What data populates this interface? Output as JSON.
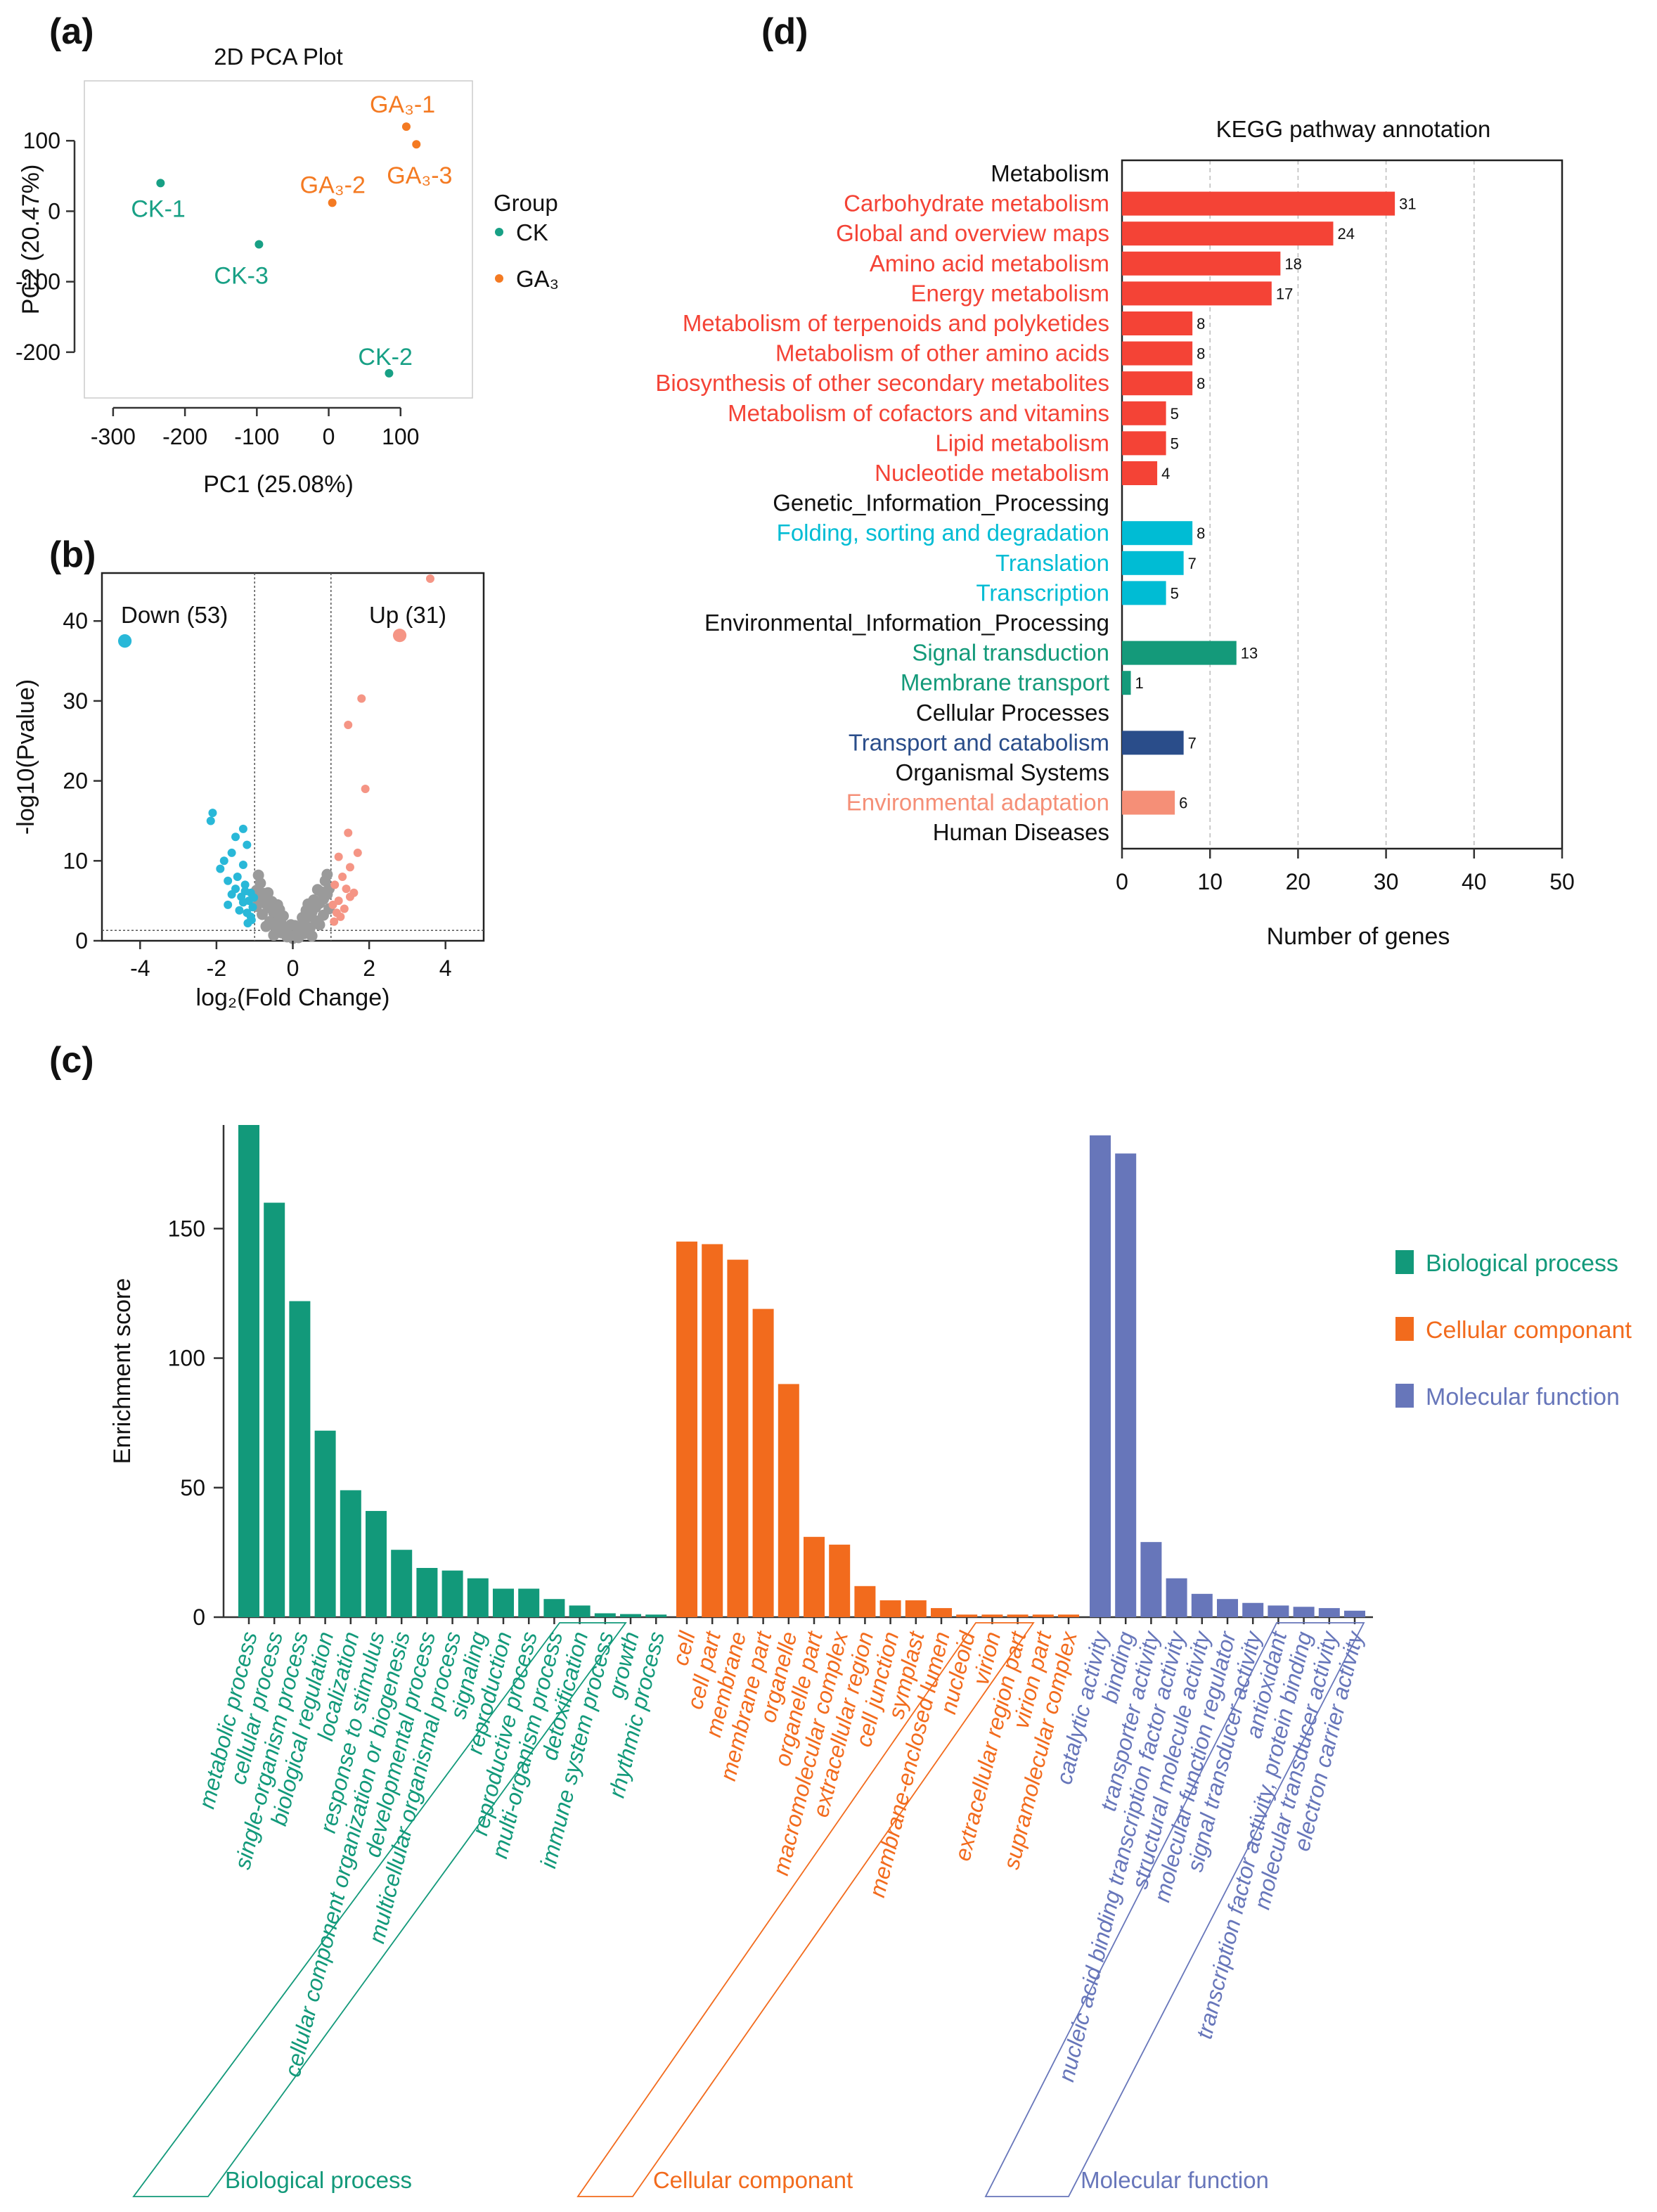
{
  "panels": {
    "a": "(a)",
    "b": "(b)",
    "c": "(c)",
    "d": "(d)"
  },
  "colors": {
    "ck": "#18a085",
    "ga": "#f47a22",
    "gray": "#9a9a9a",
    "blue_down": "#29b8d8",
    "salmon_up": "#f59585",
    "metabolism": "#f44336",
    "genetic": "#00bcd4",
    "environmental": "#149a7a",
    "cellular": "#2a4d8a",
    "organismal": "#f58f77",
    "bp": "#12997a",
    "cc": "#f26b1d",
    "mf": "#6776ba"
  },
  "chart_data": [
    {
      "id": "pca",
      "type": "scatter",
      "title": "2D PCA Plot",
      "xlabel": "PC1 (25.08%)",
      "ylabel": "PC2 (20.47%)",
      "xlim": [
        -340,
        200
      ],
      "ylim": [
        -265,
        185
      ],
      "xticks": [
        -300,
        -200,
        -100,
        0,
        100
      ],
      "yticks": [
        100,
        0,
        -100,
        -200
      ],
      "xtick_labels": [
        "-300",
        "-200",
        "-100",
        "0",
        "100"
      ],
      "ytick_labels": [
        "100",
        "0",
        "-100",
        "-200"
      ],
      "legend": {
        "title": "Group",
        "position": "right",
        "entries": [
          {
            "name": "CK",
            "color_key": "ck"
          },
          {
            "name": "GA₃",
            "color_key": "ga"
          }
        ]
      },
      "points": [
        {
          "label": "CK-1",
          "group": "CK",
          "x": -234,
          "y": 40
        },
        {
          "label": "CK-3",
          "group": "CK",
          "x": -97,
          "y": -47
        },
        {
          "label": "CK-2",
          "group": "CK",
          "x": 84,
          "y": -230
        },
        {
          "label": "GA₃-2",
          "group": "GA₃",
          "x": 5,
          "y": 12
        },
        {
          "label": "GA₃-1",
          "group": "GA₃",
          "x": 108,
          "y": 120
        },
        {
          "label": "GA₃-3",
          "group": "GA₃",
          "x": 122,
          "y": 95
        }
      ]
    },
    {
      "id": "volcano",
      "type": "scatter",
      "xlabel": "log₂(Fold Change)",
      "ylabel": "-log10(Pvalue)",
      "xlim": [
        -5,
        5
      ],
      "ylim": [
        0,
        46
      ],
      "xticks": [
        -4,
        -2,
        0,
        2,
        4
      ],
      "yticks": [
        0,
        10,
        20,
        30,
        40
      ],
      "xtick_labels": [
        "-4",
        "-2",
        "0",
        "2",
        "4"
      ],
      "ytick_labels": [
        "0",
        "10",
        "20",
        "30",
        "40"
      ],
      "thresholds": {
        "fc": [
          -1,
          1
        ],
        "p": 1.3
      },
      "annotations": {
        "down": "Down (53)",
        "up": "Up (31)"
      },
      "points_down": [
        [
          -4.4,
          37.5,
          1.6
        ],
        [
          -2.1,
          16,
          1
        ],
        [
          -2.15,
          15,
          1
        ],
        [
          -1.3,
          14,
          1
        ],
        [
          -1.5,
          13,
          1
        ],
        [
          -1.2,
          12,
          1
        ],
        [
          -1.6,
          11,
          1
        ],
        [
          -1.8,
          10,
          1
        ],
        [
          -1.3,
          9.5,
          1
        ],
        [
          -1.45,
          8,
          1
        ],
        [
          -1.7,
          7.5,
          1
        ],
        [
          -1.9,
          9,
          1
        ],
        [
          -1.25,
          7,
          1
        ],
        [
          -1.1,
          6,
          1
        ],
        [
          -1.35,
          5.5,
          1
        ],
        [
          -1.15,
          5,
          1
        ],
        [
          -1.5,
          6.5,
          1
        ],
        [
          -1.05,
          4.2,
          1
        ],
        [
          -1.2,
          3.5,
          1
        ],
        [
          -1.1,
          3,
          1
        ],
        [
          -1.3,
          4.8,
          1
        ],
        [
          -1.6,
          5.8,
          1
        ],
        [
          -1.08,
          2.6,
          1
        ],
        [
          -1.4,
          3.8,
          1
        ],
        [
          -1.18,
          2.2,
          1
        ],
        [
          -1.02,
          5.4,
          1
        ],
        [
          -1.25,
          6.2,
          1
        ],
        [
          -1.7,
          4.5,
          1
        ]
      ],
      "points_up": [
        [
          2.8,
          38.2,
          1.6
        ],
        [
          3.6,
          45.3,
          1
        ],
        [
          1.8,
          30.3,
          1
        ],
        [
          1.45,
          27,
          1
        ],
        [
          1.9,
          19,
          1
        ],
        [
          1.45,
          13.5,
          1
        ],
        [
          1.7,
          11,
          1
        ],
        [
          1.2,
          10.5,
          1
        ],
        [
          1.5,
          9.2,
          1
        ],
        [
          1.3,
          8,
          1
        ],
        [
          1.1,
          7,
          1
        ],
        [
          1.4,
          6.5,
          1
        ],
        [
          1.6,
          6,
          1
        ],
        [
          1.2,
          5,
          1
        ],
        [
          1.05,
          4.5,
          1
        ],
        [
          1.35,
          4,
          1
        ],
        [
          1.15,
          3.5,
          1
        ],
        [
          1.25,
          3,
          1
        ],
        [
          1.08,
          2.4,
          1
        ],
        [
          1.5,
          5.5,
          1
        ]
      ],
      "points_ns": [
        [
          0,
          0.3
        ],
        [
          0.1,
          0.8
        ],
        [
          -0.1,
          0.7
        ],
        [
          0.2,
          1.5
        ],
        [
          -0.2,
          1.4
        ],
        [
          0.3,
          2.2
        ],
        [
          -0.3,
          2.1
        ],
        [
          0.4,
          3
        ],
        [
          -0.4,
          2.8
        ],
        [
          0.5,
          3.6
        ],
        [
          -0.5,
          3.5
        ],
        [
          0.6,
          4.2
        ],
        [
          -0.6,
          4.1
        ],
        [
          0.7,
          4.7
        ],
        [
          -0.7,
          4.6
        ],
        [
          0.8,
          5.2
        ],
        [
          -0.8,
          5
        ],
        [
          0.9,
          5.8
        ],
        [
          -0.9,
          5.6
        ],
        [
          0.95,
          6.5
        ],
        [
          -0.95,
          6.3
        ],
        [
          0.85,
          7.5
        ],
        [
          -0.85,
          7.2
        ],
        [
          0.75,
          6.1
        ],
        [
          -0.75,
          5.9
        ],
        [
          0.6,
          2.5
        ],
        [
          -0.6,
          2.4
        ],
        [
          0.45,
          1.6
        ],
        [
          -0.45,
          1.7
        ],
        [
          0.3,
          0.9
        ],
        [
          -0.3,
          1
        ],
        [
          0.15,
          0.4
        ],
        [
          -0.15,
          0.5
        ],
        [
          0.55,
          5.1
        ],
        [
          -0.55,
          4.9
        ],
        [
          0.35,
          3.8
        ],
        [
          -0.35,
          3.9
        ],
        [
          0.65,
          6.4
        ],
        [
          -0.65,
          6
        ],
        [
          0.25,
          2.9
        ],
        [
          -0.25,
          3.1
        ],
        [
          0.05,
          1.9
        ],
        [
          -0.05,
          2
        ],
        [
          0.9,
          8.3
        ],
        [
          -0.9,
          8.2
        ],
        [
          0.8,
          3.2
        ],
        [
          -0.8,
          3.3
        ],
        [
          0.7,
          2
        ],
        [
          -0.7,
          1.8
        ],
        [
          0.5,
          0.6
        ],
        [
          -0.5,
          0.7
        ],
        [
          0.95,
          4
        ],
        [
          -0.95,
          4.3
        ],
        [
          0.4,
          4.6
        ],
        [
          -0.4,
          4.5
        ]
      ]
    },
    {
      "id": "go",
      "type": "bar",
      "ylabel": "Enrichment score",
      "ylim": [
        0,
        190
      ],
      "yticks": [
        0,
        50,
        100,
        150
      ],
      "ytick_labels": [
        "0",
        "50",
        "100",
        "150"
      ],
      "legend": [
        {
          "name": "Biological process",
          "color_key": "bp"
        },
        {
          "name": "Cellular componant",
          "color_key": "cc"
        },
        {
          "name": "Molecular function",
          "color_key": "mf"
        }
      ],
      "groups": [
        {
          "name": "Biological process",
          "color_key": "bp",
          "categories": [
            "metabolic process",
            "cellular process",
            "single-organism process",
            "biological regulation",
            "localization",
            "response to stimulus",
            "cellular component organization or biogenesis",
            "developmental process",
            "multicellular organismal process",
            "signaling",
            "reproduction",
            "reproductive process",
            "multi-organism process",
            "detoxification",
            "immune system process",
            "growth",
            "rhythmic process"
          ],
          "values": [
            190,
            160,
            122,
            72,
            49,
            41,
            26,
            19,
            18,
            15,
            11,
            11,
            7,
            4.5,
            1.5,
            1.2,
            1
          ]
        },
        {
          "name": "Cellular componant",
          "color_key": "cc",
          "categories": [
            "cell",
            "cell part",
            "membrane",
            "membrane part",
            "organelle",
            "organelle part",
            "macromolecular complex",
            "extracellular region",
            "cell junction",
            "symplast",
            "membrane-enclosed lumen",
            "nucleoid",
            "virion",
            "extracellular region part",
            "virion part",
            "supramolecular complex"
          ],
          "values": [
            145,
            144,
            138,
            119,
            90,
            31,
            28,
            12,
            6.5,
            6.5,
            3.5,
            1,
            1,
            1,
            1,
            1
          ]
        },
        {
          "name": "Molecular function",
          "color_key": "mf",
          "categories": [
            "catalytic activity",
            "binding",
            "transporter activity",
            "nucleic acid binding transcription factor activity",
            "structural molecule activity",
            "molecular function regulator",
            "signal transducer activity",
            "antioxidant",
            "transcription factor activity, protein binding",
            "molecular transducer activity",
            "electron carrier activity"
          ],
          "values": [
            186,
            179,
            29,
            15,
            9,
            7,
            5.5,
            4.5,
            4,
            3.5,
            2.5
          ]
        }
      ]
    },
    {
      "id": "kegg",
      "type": "bar",
      "orientation": "horizontal",
      "title": "KEGG pathway annotation",
      "xlabel": "Number of genes",
      "xlim": [
        0,
        50
      ],
      "xticks": [
        0,
        10,
        20,
        30,
        40,
        50
      ],
      "xtick_labels": [
        "0",
        "10",
        "20",
        "30",
        "40",
        "50"
      ],
      "rows": [
        {
          "label": "Metabolism",
          "header": true
        },
        {
          "label": "Carbohydrate metabolism",
          "value": 31,
          "value_label": "31",
          "color_key": "metabolism"
        },
        {
          "label": "Global and overview maps",
          "value": 24,
          "value_label": "24",
          "color_key": "metabolism"
        },
        {
          "label": "Amino acid metabolism",
          "value": 18,
          "value_label": "18",
          "color_key": "metabolism"
        },
        {
          "label": "Energy metabolism",
          "value": 17,
          "value_label": "17",
          "color_key": "metabolism"
        },
        {
          "label": "Metabolism of terpenoids and polyketides",
          "value": 8,
          "value_label": "8",
          "color_key": "metabolism"
        },
        {
          "label": "Metabolism of other amino acids",
          "value": 8,
          "value_label": "8",
          "color_key": "metabolism"
        },
        {
          "label": "Biosynthesis of other secondary metabolites",
          "value": 8,
          "value_label": "8",
          "color_key": "metabolism"
        },
        {
          "label": "Metabolism of cofactors and vitamins",
          "value": 5,
          "value_label": "5",
          "color_key": "metabolism"
        },
        {
          "label": "Lipid metabolism",
          "value": 5,
          "value_label": "5",
          "color_key": "metabolism"
        },
        {
          "label": "Nucleotide metabolism",
          "value": 4,
          "value_label": "4",
          "color_key": "metabolism"
        },
        {
          "label": "Genetic_Information_Processing",
          "header": true
        },
        {
          "label": "Folding, sorting and degradation",
          "value": 8,
          "value_label": "8",
          "color_key": "genetic"
        },
        {
          "label": "Translation",
          "value": 7,
          "value_label": "7",
          "color_key": "genetic"
        },
        {
          "label": "Transcription",
          "value": 5,
          "value_label": "5",
          "color_key": "genetic"
        },
        {
          "label": "Environmental_Information_Processing",
          "header": true
        },
        {
          "label": "Signal transduction",
          "value": 13,
          "value_label": "13",
          "color_key": "environmental"
        },
        {
          "label": "Membrane transport",
          "value": 1,
          "value_label": "1",
          "color_key": "environmental"
        },
        {
          "label": "Cellular Processes",
          "header": true
        },
        {
          "label": "Transport and catabolism",
          "value": 7,
          "value_label": "7",
          "color_key": "cellular"
        },
        {
          "label": "Organismal Systems",
          "header": true
        },
        {
          "label": "Environmental adaptation",
          "value": 6,
          "value_label": "6",
          "color_key": "organismal"
        },
        {
          "label": "Human Diseases",
          "header": true
        }
      ]
    }
  ]
}
